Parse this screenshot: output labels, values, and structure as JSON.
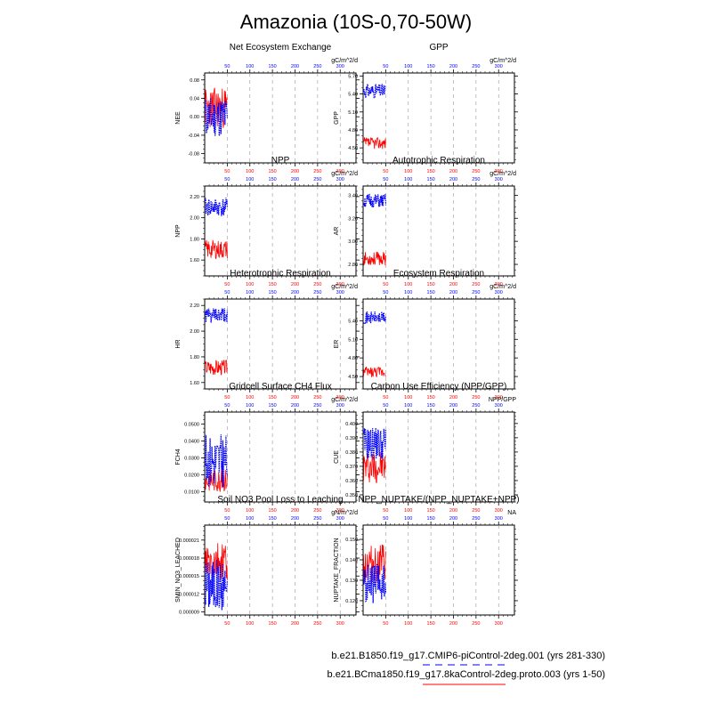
{
  "title": "Amazonia (10S-0,70-50W)",
  "colors": {
    "series_a": "#0000ff",
    "series_b": "#ff0000",
    "grid": "#999999",
    "axis": "#000000"
  },
  "legend": {
    "entries": [
      {
        "name": "b.e21.B1850.f19_g17.CMIP6-piControl-2deg.001 (yrs 281-330)",
        "color": "#0000ff",
        "style": "dashed"
      },
      {
        "name": "b.e21.BCma1850.f19_g17.8kaControl-2deg.proto.003 (yrs 1-50)",
        "color": "#ff0000",
        "style": "solid"
      }
    ]
  },
  "chart_data": [
    {
      "type": "line",
      "title": "Net Ecosystem Exchange",
      "units": "gC/m^2/d",
      "ylabel": "NEE",
      "xlim": [
        0,
        335
      ],
      "x_ticks": [
        50,
        100,
        150,
        200,
        250,
        300
      ],
      "ylim": [
        -0.1,
        0.095
      ],
      "y_ticks": [
        -0.08,
        -0.04,
        0.0,
        0.04,
        0.08
      ],
      "y_tick_labels": [
        "-0.08",
        "-0.04",
        "0.00",
        "0.04",
        "0.08"
      ],
      "y_minor_step": 0.01,
      "blue": {
        "center": 0.0,
        "amp": 0.045,
        "seed": 11
      },
      "red": {
        "center": 0.02,
        "amp": 0.045,
        "seed": 23
      }
    },
    {
      "type": "line",
      "title": "GPP",
      "units": "gC/m^2/d",
      "ylabel": "GPP",
      "xlim": [
        0,
        335
      ],
      "x_ticks": [
        50,
        100,
        150,
        200,
        250,
        300
      ],
      "ylim": [
        4.25,
        5.75
      ],
      "y_ticks": [
        4.5,
        4.8,
        5.1,
        5.4,
        5.7
      ],
      "y_tick_labels": [
        "4.50",
        "4.80",
        "5.10",
        "5.40",
        "5.70"
      ],
      "y_minor_step": 0.1,
      "blue": {
        "center": 5.45,
        "amp": 0.12,
        "seed": 31
      },
      "red": {
        "center": 4.58,
        "amp": 0.1,
        "seed": 37
      }
    },
    {
      "type": "line",
      "title": "NPP",
      "units": "gC/m^2/d",
      "ylabel": "NPP",
      "xlim": [
        0,
        335
      ],
      "x_ticks": [
        50,
        100,
        150,
        200,
        250,
        300
      ],
      "ylim": [
        1.45,
        2.3
      ],
      "y_ticks": [
        1.6,
        1.8,
        2.0,
        2.2
      ],
      "y_tick_labels": [
        "1.60",
        "1.80",
        "2.00",
        "2.20"
      ],
      "y_minor_step": 0.05,
      "blue": {
        "center": 2.1,
        "amp": 0.09,
        "seed": 41
      },
      "red": {
        "center": 1.7,
        "amp": 0.09,
        "seed": 43
      }
    },
    {
      "type": "line",
      "title": "Autotrophic Respiration",
      "units": "gC/m^2/d",
      "ylabel": "AR",
      "xlim": [
        0,
        335
      ],
      "x_ticks": [
        50,
        100,
        150,
        200,
        250,
        300
      ],
      "ylim": [
        2.7,
        3.48
      ],
      "y_ticks": [
        2.8,
        3.0,
        3.2,
        3.4
      ],
      "y_tick_labels": [
        "2.80",
        "3.00",
        "3.20",
        "3.40"
      ],
      "y_minor_step": 0.05,
      "blue": {
        "center": 3.35,
        "amp": 0.06,
        "seed": 51
      },
      "red": {
        "center": 2.85,
        "amp": 0.06,
        "seed": 53
      }
    },
    {
      "type": "line",
      "title": "Heterotrophic Respiration",
      "units": "gC/m^2/d",
      "ylabel": "HR",
      "xlim": [
        0,
        335
      ],
      "x_ticks": [
        50,
        100,
        150,
        200,
        250,
        300
      ],
      "ylim": [
        1.55,
        2.25
      ],
      "y_ticks": [
        1.6,
        1.8,
        2.0,
        2.2
      ],
      "y_tick_labels": [
        "1.60",
        "1.80",
        "2.00",
        "2.20"
      ],
      "y_minor_step": 0.05,
      "blue": {
        "center": 2.12,
        "amp": 0.06,
        "seed": 61
      },
      "red": {
        "center": 1.72,
        "amp": 0.06,
        "seed": 67
      }
    },
    {
      "type": "line",
      "title": "Ecosystem Respiration",
      "units": "gC/m^2/d",
      "ylabel": "ER",
      "xlim": [
        0,
        335
      ],
      "x_ticks": [
        50,
        100,
        150,
        200,
        250,
        300
      ],
      "ylim": [
        4.3,
        5.75
      ],
      "y_ticks": [
        4.5,
        4.8,
        5.1,
        5.4
      ],
      "y_tick_labels": [
        "4.50",
        "4.80",
        "5.10",
        "5.40"
      ],
      "y_minor_step": 0.1,
      "blue": {
        "center": 5.45,
        "amp": 0.1,
        "seed": 71
      },
      "red": {
        "center": 4.57,
        "amp": 0.09,
        "seed": 73
      }
    },
    {
      "type": "line",
      "title": "Gridcell Surface CH4 Flux",
      "units": "gC/m^2/d",
      "ylabel": "FCH4",
      "xlim": [
        0,
        335
      ],
      "x_ticks": [
        50,
        100,
        150,
        200,
        250,
        300
      ],
      "ylim": [
        0.004,
        0.057
      ],
      "y_ticks": [
        0.01,
        0.02,
        0.03,
        0.04,
        0.05
      ],
      "y_tick_labels": [
        "0.0100",
        "0.0200",
        "0.0300",
        "0.0400",
        "0.0500"
      ],
      "y_minor_step": 0.0025,
      "blue": {
        "center": 0.028,
        "amp": 0.016,
        "seed": 81
      },
      "red": {
        "center": 0.017,
        "amp": 0.007,
        "seed": 83
      }
    },
    {
      "type": "line",
      "title": "Carbon Use Efficiency (NPP/GPP)",
      "units": "NPP/GPP",
      "ylabel": "CUE",
      "xlim": [
        0,
        335
      ],
      "x_ticks": [
        50,
        100,
        150,
        200,
        250,
        300
      ],
      "ylim": [
        0.345,
        0.408
      ],
      "y_ticks": [
        0.35,
        0.36,
        0.37,
        0.38,
        0.39,
        0.4
      ],
      "y_tick_labels": [
        "0.350",
        "0.360",
        "0.370",
        "0.380",
        "0.390",
        "0.400"
      ],
      "y_minor_step": 0.0025,
      "blue": {
        "center": 0.386,
        "amp": 0.012,
        "seed": 91
      },
      "red": {
        "center": 0.37,
        "amp": 0.012,
        "seed": 97
      }
    },
    {
      "type": "line",
      "title": "Soil NO3 Pool Loss to Leaching",
      "units": "gN/m^2/d",
      "ylabel": "SMIN_NO3_LEACHED",
      "xlim": [
        0,
        335
      ],
      "x_ticks": [
        50,
        100,
        150,
        200,
        250,
        300
      ],
      "ylim": [
        8.5e-06,
        2.35e-05
      ],
      "y_ticks": [
        9e-06,
        1.2e-05,
        1.5e-05,
        1.8e-05,
        2.1e-05
      ],
      "y_tick_labels": [
        "0.000009",
        "0.000012",
        "0.000015",
        "0.000018",
        "0.000021"
      ],
      "y_minor_step": 7.5e-07,
      "blue": {
        "center": 1.35e-05,
        "amp": 4.5e-06,
        "seed": 101
      },
      "red": {
        "center": 1.7e-05,
        "amp": 3.5e-06,
        "seed": 103
      }
    },
    {
      "type": "line",
      "title": "NPP_NUPTAKE/(NPP_NUPTAKE+NPP)",
      "units": "NA",
      "ylabel": "NUPTAKE_FRACTION",
      "xlim": [
        0,
        335
      ],
      "x_ticks": [
        50,
        100,
        150,
        200,
        250,
        300
      ],
      "ylim": [
        0.113,
        0.157
      ],
      "y_ticks": [
        0.12,
        0.13,
        0.14,
        0.15
      ],
      "y_tick_labels": [
        "0.120",
        "0.130",
        "0.140",
        "0.150"
      ],
      "y_minor_step": 0.0025,
      "blue": {
        "center": 0.128,
        "amp": 0.01,
        "seed": 111
      },
      "red": {
        "center": 0.138,
        "amp": 0.01,
        "seed": 113
      }
    }
  ]
}
